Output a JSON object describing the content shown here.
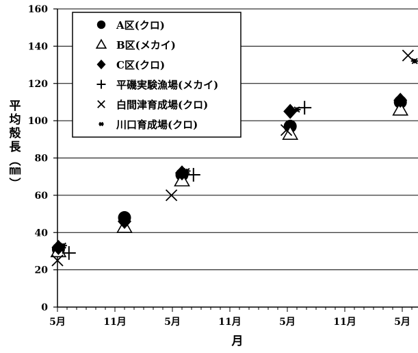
{
  "chart_data": {
    "type": "scatter",
    "title": "",
    "xlabel": "月",
    "ylabel": "平均殻長（㎜）",
    "ylim": [
      0,
      160
    ],
    "yticks": [
      0,
      20,
      40,
      60,
      80,
      100,
      120,
      140,
      160
    ],
    "x_tick_labels": [
      "5月",
      "11月",
      "5月",
      "11月",
      "5月",
      "11月",
      "5月"
    ],
    "x_tick_months": [
      0,
      6,
      12,
      18,
      24,
      30,
      36
    ],
    "xlim_months": [
      0,
      37.5
    ],
    "grid": "horizontal",
    "legend_position": "top-left",
    "series": [
      {
        "name": "A区(クロ)",
        "marker": "circle",
        "x": [
          0.1,
          7,
          13,
          24.3,
          35.8
        ],
        "y": [
          31,
          48,
          71,
          97,
          110
        ]
      },
      {
        "name": "B区(メカイ)",
        "marker": "triangle",
        "x": [
          0.1,
          7,
          13,
          24.3,
          35.8
        ],
        "y": [
          30,
          43,
          68,
          93,
          106
        ]
      },
      {
        "name": "C区(クロ)",
        "marker": "diamond",
        "x": [
          0.1,
          7,
          13,
          24.3,
          35.8
        ],
        "y": [
          32,
          46,
          72,
          105,
          111
        ]
      },
      {
        "name": "平磯実験漁場(メカイ)",
        "marker": "plus",
        "x": [
          1.2,
          14.2,
          25.8
        ],
        "y": [
          29,
          71,
          107
        ]
      },
      {
        "name": "白間津育成場(クロ)",
        "marker": "x",
        "x": [
          0,
          11.9,
          23.9,
          36.6
        ],
        "y": [
          25,
          60,
          95,
          135
        ]
      },
      {
        "name": "川口育成場(クロ)",
        "marker": "asterisk",
        "x": [
          0.6,
          13.5,
          25,
          37.3
        ],
        "y": [
          33,
          73,
          106,
          132
        ]
      }
    ]
  }
}
